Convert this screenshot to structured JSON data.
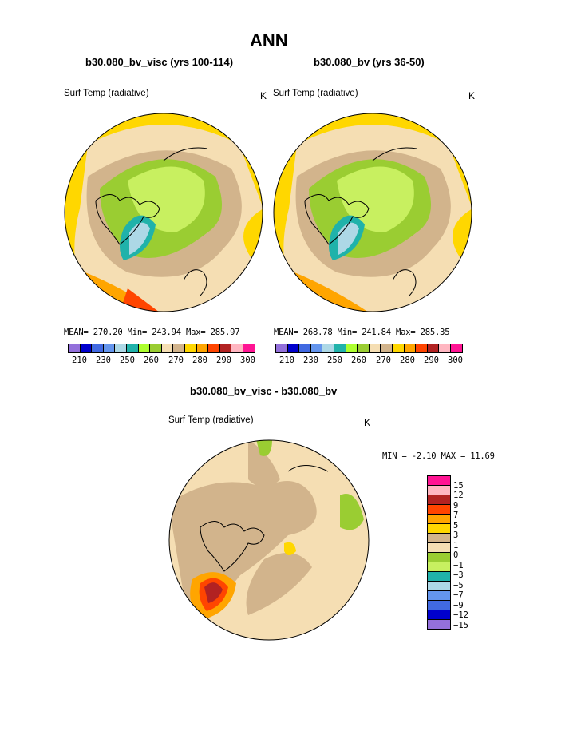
{
  "title": "ANN",
  "panels": [
    {
      "case": "b30.080_bv_visc (yrs 100-114)",
      "variable": "Surf Temp (radiative)",
      "units": "K",
      "stats": "MEAN= 270.20  Min= 243.94  Max= 285.97"
    },
    {
      "case": "b30.080_bv (yrs 36-50)",
      "variable": "Surf Temp (radiative)",
      "units": "K",
      "stats": "MEAN= 268.78  Min= 241.84  Max= 285.35"
    }
  ],
  "diff": {
    "title": "b30.080_bv_visc - b30.080_bv",
    "variable": "Surf Temp (radiative)",
    "units": "K",
    "minmax": "MIN =  -2.10 MAX =  11.69"
  },
  "colorbar_abs": {
    "colors": [
      "#9370db",
      "#0000cd",
      "#4169e1",
      "#6495ed",
      "#add8e6",
      "#20b2aa",
      "#adff2f",
      "#9acd32",
      "#f5deb3",
      "#d2b48c",
      "#ffd700",
      "#ffa500",
      "#ff4500",
      "#b22222",
      "#ffb6c1",
      "#ff1493"
    ],
    "ticks": [
      "210",
      "230",
      "250",
      "260",
      "270",
      "280",
      "290",
      "300"
    ]
  },
  "colorbar_diff": {
    "colors": [
      "#ff1493",
      "#ffb6c1",
      "#b22222",
      "#ff4500",
      "#ffa500",
      "#ffd700",
      "#d2b48c",
      "#f5deb3",
      "#9acd32",
      "#c8f060",
      "#20b2aa",
      "#add8e6",
      "#6495ed",
      "#4169e1",
      "#0000cd",
      "#9370db"
    ],
    "ticks": [
      "15",
      "12",
      "9",
      "7",
      "5",
      "3",
      "1",
      "0",
      "−1",
      "−3",
      "−5",
      "−7",
      "−9",
      "−12",
      "−15"
    ]
  }
}
